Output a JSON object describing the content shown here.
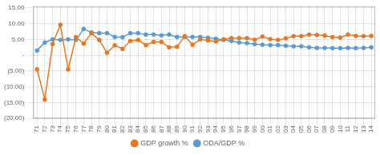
{
  "chart_data": {
    "type": "line",
    "categories": [
      "71",
      "72",
      "73",
      "74",
      "75",
      "76",
      "77",
      "78",
      "79",
      "80",
      "81",
      "82",
      "83",
      "84",
      "85",
      "86",
      "87",
      "88",
      "89",
      "90",
      "91",
      "92",
      "93",
      "94",
      "95",
      "96",
      "97",
      "98",
      "99",
      "00",
      "01",
      "02",
      "03",
      "04",
      "05",
      "06",
      "07",
      "08",
      "09",
      "10",
      "11",
      "12",
      "13",
      "14"
    ],
    "series": [
      {
        "name": "GDP growth %",
        "color": "#E87722",
        "marker": "circle",
        "line_style": "solid",
        "values": [
          -4.5,
          -14.0,
          3.5,
          9.6,
          -4.5,
          5.7,
          3.7,
          7.0,
          4.8,
          0.8,
          3.1,
          2.0,
          4.5,
          4.8,
          3.2,
          4.2,
          4.2,
          2.5,
          2.7,
          6.0,
          3.3,
          5.0,
          4.7,
          4.3,
          5.0,
          5.4,
          5.4,
          5.4,
          4.9,
          5.9,
          5.1,
          4.8,
          5.3,
          6.0,
          6.0,
          6.5,
          6.4,
          6.2,
          5.7,
          5.6,
          6.5,
          6.1,
          6.0,
          6.1
        ]
      },
      {
        "name": "ODA/GDP %",
        "color": "#5B9BD5",
        "marker": "circle",
        "line_style": "solid",
        "values": [
          1.5,
          4.0,
          5.0,
          4.8,
          5.0,
          4.8,
          8.3,
          7.2,
          7.0,
          7.0,
          5.8,
          5.7,
          7.0,
          7.0,
          6.5,
          6.5,
          6.3,
          6.5,
          5.8,
          5.8,
          5.8,
          5.8,
          5.5,
          5.2,
          4.8,
          4.5,
          4.0,
          3.8,
          3.5,
          3.3,
          3.2,
          3.2,
          3.0,
          2.8,
          2.8,
          2.5,
          2.3,
          2.3,
          2.2,
          2.2,
          2.3,
          2.2,
          2.3,
          2.5
        ]
      }
    ],
    "ylim": [
      -20,
      15.5
    ],
    "yticks": [
      {
        "value": 15,
        "label": "15.00"
      },
      {
        "value": 10,
        "label": "10.00"
      },
      {
        "value": 5,
        "label": "5.00"
      },
      {
        "value": 0,
        "label": "-"
      },
      {
        "value": -5,
        "label": "(5.00)"
      },
      {
        "value": -10,
        "label": "(10.00)"
      },
      {
        "value": -15,
        "label": "(15.00)"
      },
      {
        "value": -20,
        "label": "(20.00)"
      }
    ],
    "grid": true,
    "legend": "bottom"
  }
}
